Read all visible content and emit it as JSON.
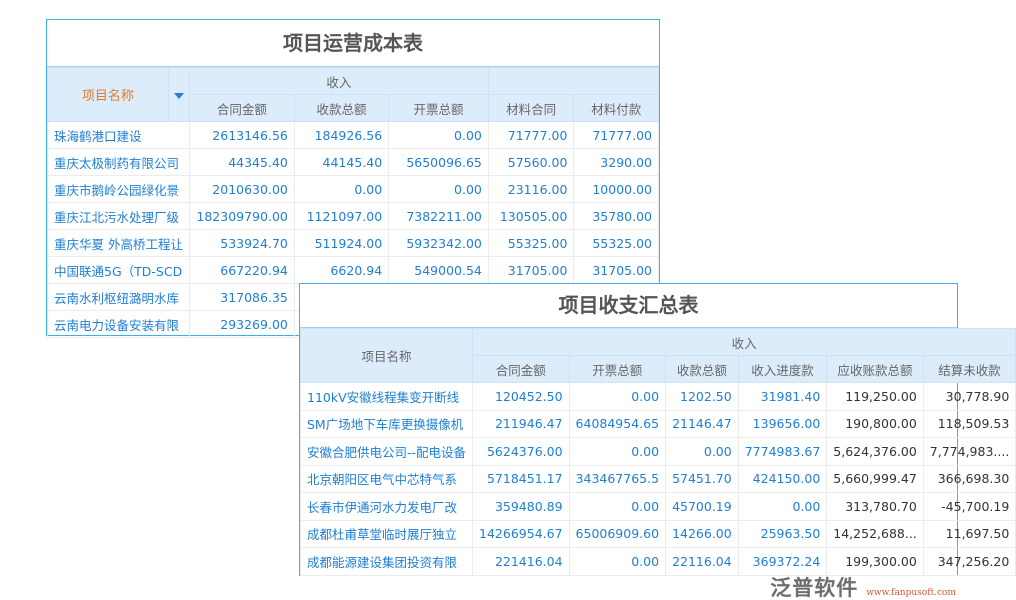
{
  "table1": {
    "title": "项目运营成本表",
    "name_header": "项目名称",
    "group_header": "收入",
    "columns": [
      "合同金额",
      "收款总额",
      "开票总额",
      "材料合同",
      "材料付款"
    ],
    "rows": [
      [
        "珠海鹤港口建设",
        "2613146.56",
        "184926.56",
        "0.00",
        "71777.00",
        "71777.00"
      ],
      [
        "重庆太极制药有限公司",
        "44345.40",
        "44145.40",
        "5650096.65",
        "57560.00",
        "3290.00"
      ],
      [
        "重庆市鹅岭公园绿化景",
        "2010630.00",
        "0.00",
        "0.00",
        "23116.00",
        "10000.00"
      ],
      [
        "重庆江北污水处理厂级",
        "182309790.00",
        "1121097.00",
        "7382211.00",
        "130505.00",
        "35780.00"
      ],
      [
        "重庆华夏 外高桥工程让",
        "533924.70",
        "511924.00",
        "5932342.00",
        "55325.00",
        "55325.00"
      ],
      [
        "中国联通5G（TD-SCD",
        "667220.94",
        "6620.94",
        "549000.54",
        "31705.00",
        "31705.00"
      ],
      [
        "云南水利枢纽潞明水库",
        "317086.35",
        "",
        "",
        "",
        ""
      ],
      [
        "云南电力设备安装有限",
        "293269.00",
        "",
        "",
        "",
        ""
      ]
    ]
  },
  "table2": {
    "title": "项目收支汇总表",
    "name_header": "项目名称",
    "group_header": "收入",
    "columns": [
      "合同金额",
      "开票总额",
      "收款总额",
      "收入进度款",
      "应收账款总额",
      "结算未收款"
    ],
    "rows": [
      [
        "110kV安徽线程集变开断线",
        "120452.50",
        "0.00",
        "1202.50",
        "31981.40",
        "119,250.00",
        "30,778.90"
      ],
      [
        "SM广场地下车库更换摄像机",
        "211946.47",
        "64084954.65",
        "21146.47",
        "139656.00",
        "190,800.00",
        "118,509.53"
      ],
      [
        "安徽合肥供电公司--配电设备",
        "5624376.00",
        "0.00",
        "0.00",
        "7774983.67",
        "5,624,376.00",
        "7,774,983...."
      ],
      [
        "北京朝阳区电气中芯特气系",
        "5718451.17",
        "343467765.5",
        "57451.70",
        "424150.00",
        "5,660,999.47",
        "366,698.30"
      ],
      [
        "长春市伊通河水力发电厂改",
        "359480.89",
        "0.00",
        "45700.19",
        "0.00",
        "313,780.70",
        "-45,700.19"
      ],
      [
        "成都杜甫草堂临时展厅独立",
        "14266954.67",
        "65006909.60",
        "14266.00",
        "25963.50",
        "14,252,688...",
        "11,697.50"
      ],
      [
        "成都能源建设集团投资有限",
        "221416.04",
        "0.00",
        "22116.04",
        "369372.24",
        "199,300.00",
        "347,256.20"
      ]
    ]
  },
  "watermark": {
    "logo": "泛普软件",
    "url": "www.fanpusoft.com"
  }
}
